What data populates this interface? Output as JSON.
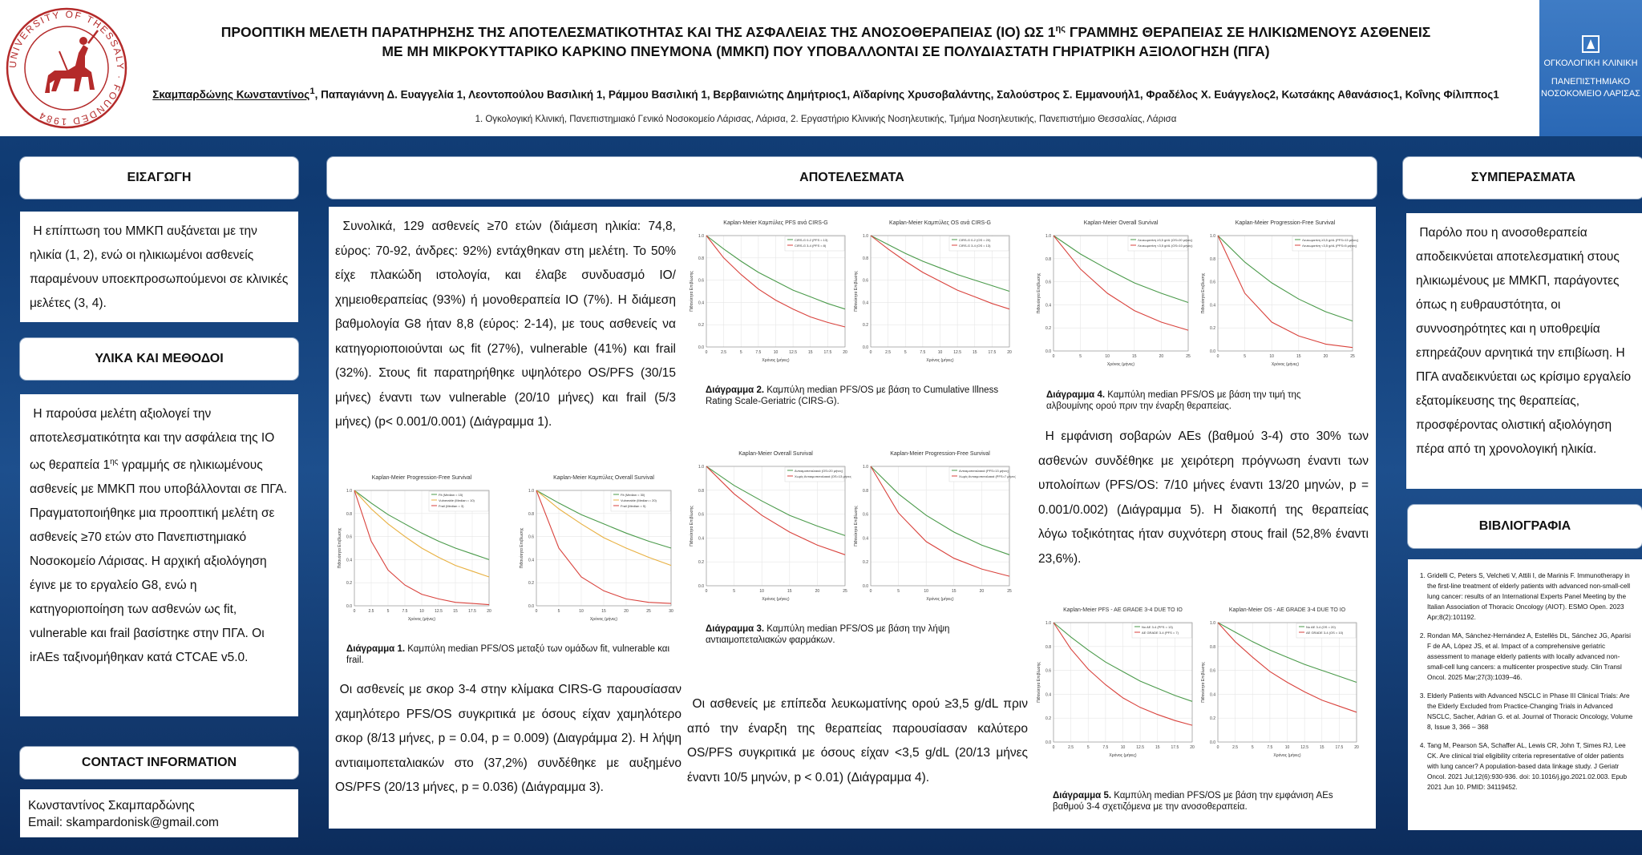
{
  "header": {
    "university_seal_text": "UNIVERSITY OF THESSALY · FOUNDED 1984",
    "title_line1_before": "ΠΡΟΟΠΤΙΚΗ ΜΕΛΕΤΗ ΠΑΡΑΤΗΡΗΣΗΣ ΤΗΣ ΑΠΟΤΕΛΕΣΜΑΤΙΚΟΤΗΤΑΣ ΚΑΙ ΤΗΣ ΑΣΦΑΛΕΙΑΣ ΤΗΣ ΑΝΟΣΟΘΕΡΑΠΕΙΑΣ (ΙΟ) ΩΣ 1",
    "title_line1_sup": "ης",
    "title_line1_after": " ΓΡΑΜΜΗΣ ΘΕΡΑΠΕΙΑΣ ΣΕ ΗΛΙΚΙΩΜΕΝΟΥΣ ΑΣΘΕΝΕΙΣ",
    "title_line2": "ΜΕ ΜΗ ΜΙΚΡΟΚΥΤΤΑΡΙΚΟ ΚΑΡΚΙΝΟ ΠΝΕΥΜΟΝΑ (ΜΜΚΠ) ΠΟΥ ΥΠΟΒΑΛΛΟΝΤΑΙ ΣΕ ΠΟΛΥΔΙΑΣΤΑΤΗ ΓΗΡΙΑΤΡΙΚΗ ΑΞΙΟΛΟΓΗΣΗ (ΠΓΑ)",
    "first_author": "Σκαμπαρδώνης Κωνσταντίνος",
    "other_authors": "Παπαγιάννη Δ.  Ευαγγελία 1, Λεοντοπούλου Βασιλική 1, Ράμμου Βασιλική 1, Βερβαινιώτης Δημήτριος1, Αϊδαρίνης Χρυσοβαλάντης, Σαλούστρος Σ. Εμμανουήλ1, Φραδέλος Χ. Ευάγγελος2, Κωτσάκης Αθανάσιος1, Κοΐνης Φίλιππος1",
    "first_author_sup": "1",
    "affiliations": "1. Ογκολογική Κλινική, Πανεπιστημιακό Γενικό Νοσοκομείο Λάρισας, Λάρισα, 2. Εργαστήριο Κλινικής Νοσηλευτικής, Τμήμα Νοσηλευτικής, Πανεπιστήμιο Θεσσαλίας, Λάρισα",
    "brand_line1": "ΟΓΚΟΛΟΓΙΚΗ ΚΛΙΝΙΚΗ",
    "brand_line2": "ΠΑΝΕΠΙΣΤΗΜΙΑΚΟ",
    "brand_line3": "ΝΟΣΟΚΟΜΕΙΟ ΛΑΡΙΣΑΣ"
  },
  "left": {
    "intro_heading": "ΕΙΣΑΓΩΓΗ",
    "intro_text": "Η επίπτωση του ΜΜΚΠ αυξάνεται με την ηλικία (1, 2), ενώ οι ηλικιωμένοι ασθενείς παραμένουν υποεκπροσωπούμενοι σε κλινικές μελέτες (3, 4).",
    "methods_heading": "ΥΛΙΚΑ ΚΑΙ ΜΕΘΟΔΟΙ",
    "methods_text_a": "Η παρούσα μελέτη αξιολογεί την αποτελεσματικότητα και την ασφάλεια της ΙΟ ως θεραπεία 1",
    "methods_sup": "ης",
    "methods_text_b": " γραμμής σε ηλικιωμένους ασθενείς με ΜΜΚΠ που υποβάλλονται σε  ΠΓΑ. Πραγματοποιήθηκε μια προοπτική μελέτη σε ασθενείς ≥70 ετών στο Πανεπιστημιακό Νοσοκομείο Λάρισας. Η αρχική αξιολόγηση έγινε με το εργαλείο G8, ενώ η κατηγοριοποίηση των ασθενών ως fit, vulnerable και frail βασίστηκε στην ΠΓΑ. Οι irAEs ταξινομήθηκαν κατά CTCAE v5.0.",
    "contact_heading": "CONTACT INFORMATION",
    "contact_name": "Κωνσταντίνος Σκαμπαρδώνης",
    "contact_email": "Email: skampardonisk@gmail.com"
  },
  "results": {
    "heading": "ΑΠΟΤΕΛΕΣΜΑΤΑ",
    "para1": "Συνολικά, 129 ασθενείς ≥70 ετών (διάμεση ηλικία: 74,8, εύρος: 70-92, άνδρες: 92%) εντάχθηκαν στη μελέτη. Το 50% είχε πλακώδη ιστολογία, και έλαβε συνδυασμό ΙΟ/χημειοθεραπείας (93%) ή μονοθεραπεία ΙΟ (7%). Η διάμεση βαθμολογία G8 ήταν 8,8 (εύρος: 2-14), με τους ασθενείς να κατηγοριοποιούνται ως fit (27%), vulnerable (41%) και frail (32%). Στους fit παρατηρήθηκε υψηλότερο OS/PFS (30/15 μήνες) έναντι των vulnerable (20/10 μήνες) και frail (5/3 μήνες) (p< 0.001/0.001) (Διάγραμμα 1).",
    "para2": "Οι ασθενείς με σκορ 3-4 στην κλίμακα CIRS-G παρουσίασαν χαμηλότερο PFS/OS συγκριτικά με όσους είχαν χαμηλότερο σκορ (8/13 μήνες, p = 0.04, p = 0.009) (Διαγράμμα 2). Η λήψη αντιαιμοπεταλιακών στο (37,2%) συνδέθηκε με αυξημένο OS/PFS (20/13 μήνες, p = 0.036) (Διάγραμμα 3).",
    "para3": "Οι ασθενείς με επίπεδα λευκωματίνης ορού ≥3,5 g/dL πριν από την έναρξη της θεραπείας παρουσίασαν καλύτερο OS/PFS συγκριτικά με όσους είχαν <3,5 g/dL (20/13 μήνες έναντι 10/5 μηνών, p < 0.01) (Διάγραμμα 4).",
    "para4": "Η εμφάνιση σοβαρών AEs (βαθμού 3-4) στο 30% των ασθενών συνδέθηκε με χειρότερη πρόγνωση έναντι των υπολοίπων (PFS/OS: 7/10 μήνες έναντι 13/20 μηνών, p = 0.001/0.002) (Διάγραμμα 5). Η διακοπή της θεραπείας λόγω τοξικότητας ήταν συχνότερη στους frail (52,8% έναντι 23,6%).",
    "cap1_bold": "Διάγραμμα 1.",
    "cap1": " Καμπύλη  median  PFS/OS μεταξύ των ομάδων fit, vulnerable και frail.",
    "cap2_bold": "Διάγραμμα 2.",
    "cap2": " Καμπύλη  median  PFS/OS  με βάση το Cumulative Illness Rating Scale-Geriatric (CIRS-G).",
    "cap3_bold": "Διάγραμμα 3.",
    "cap3": " Καμπύλη  median  PFS/OS  με βάση την λήψη αντιαιμοπεταλιακών φαρμάκων.",
    "cap4_bold": "Διάγραμμα 4.",
    "cap4": " Καμπύλη  median  PFS/OS  με βάση την τιμή της αλβουμίνης ορού πριν την έναρξη  θεραπείας.",
    "cap5_bold": "Διάγραμμα 5.",
    "cap5": " Καμπύλη  median  PFS/OS  με βάση την εμφάνιση AEs βαθμού 3-4 σχετιζόμενα με την ανοσοθεραπεία."
  },
  "right": {
    "conclusions_heading": "ΣΥΜΠΕΡΑΣΜΑΤΑ",
    "conclusions_text": "Παρόλο που η ανοσοθεραπεία αποδεικνύεται αποτελεσματική στους ηλικιωμένους με ΜΜΚΠ, παράγοντες όπως η ευθραυστότητα, οι συννοσηρότητες και η υποθρεψία επηρεάζουν αρνητικά την επιβίωση. Η ΠΓΑ αναδεικνύεται ως κρίσιμο εργαλείο εξατομίκευσης της θεραπείας, προσφέροντας ολιστική αξιολόγηση πέρα από τη χρονολογική ηλικία.",
    "references_heading": "ΒΙΒΛΙΟΓΡΑΦΙΑ",
    "references": [
      "Gridelli C, Peters S, Velcheti V, Attili I, de Marinis F. Immunotherapy in the first-line treatment of elderly patients with advanced non-small-cell lung cancer: results of an International Experts Panel Meeting by the Italian Association of Thoracic Oncology (AIOT). ESMO Open. 2023 Apr;8(2):101192.",
      "Rondan MA, Sánchez-Hernández A, Estellés DL, Sánchez JG, Aparisi F de AA, López JS, et al. Impact of a comprehensive geriatric assessment to manage elderly patients with locally advanced non-small-cell lung cancers: a multicenter prospective study. Clin Transl Oncol. 2025 Mar;27(3):1039–46.",
      "Elderly Patients with Advanced NSCLC in Phase III Clinical Trials: Are the Elderly Excluded from Practice-Changing Trials in Advanced NSCLC, Sacher, Adrian G. et al. Journal of Thoracic Oncology, Volume 8, Issue 3, 366 – 368",
      "Tang M, Pearson SA, Schaffer AL, Lewis CR, John T, Simes RJ, Lee CK. Are clinical trial eligibility criteria representative of older patients with lung cancer? A population-based data linkage study. J Geriatr Oncol. 2021 Jul;12(6):930-936. doi: 10.1016/j.jgo.2021.02.003. Epub 2021 Jun 10. PMID: 34119452."
    ]
  },
  "colors": {
    "green": "#4a9a4a",
    "red": "#d9423c",
    "orange": "#e8b040",
    "seal_red": "#b42a2a",
    "navy": "#133f77"
  },
  "chart_data": [
    {
      "type": "line",
      "title": "Kaplan-Meier Progression-Free Survival",
      "x": [
        0,
        2.5,
        5,
        7.5,
        10,
        12.5,
        15,
        17.5,
        20
      ],
      "xlabel": "Χρόνος (μήνες)",
      "ylabel": "Πιθανότητα Επιβίωσης",
      "xlim": [
        0,
        20
      ],
      "ylim": [
        0,
        1
      ],
      "series": [
        {
          "name": "Fit (Median = 15)",
          "color": "#4a9a4a",
          "values": [
            1.0,
            0.89,
            0.79,
            0.71,
            0.63,
            0.56,
            0.5,
            0.45,
            0.4
          ]
        },
        {
          "name": "Vulnerable (Median = 10)",
          "color": "#e8b040",
          "values": [
            1.0,
            0.84,
            0.71,
            0.6,
            0.5,
            0.42,
            0.35,
            0.3,
            0.25
          ]
        },
        {
          "name": "Frail (Median = 3)",
          "color": "#d9423c",
          "values": [
            1.0,
            0.56,
            0.31,
            0.18,
            0.1,
            0.06,
            0.03,
            0.02,
            0.01
          ]
        }
      ]
    },
    {
      "type": "line",
      "title": "Kaplan-Meier Καμπύλες Overall Survival",
      "x": [
        0,
        5,
        10,
        15,
        20,
        25,
        30
      ],
      "xlabel": "Χρόνος (μήνες)",
      "ylabel": "Πιθανότητα Επιβίωσης",
      "xlim": [
        0,
        30
      ],
      "ylim": [
        0,
        1
      ],
      "series": [
        {
          "name": "Fit (Median = 30)",
          "color": "#4a9a4a",
          "values": [
            1.0,
            0.89,
            0.79,
            0.71,
            0.63,
            0.56,
            0.5
          ]
        },
        {
          "name": "Vulnerable (Median = 20)",
          "color": "#e8b040",
          "values": [
            1.0,
            0.84,
            0.71,
            0.59,
            0.5,
            0.42,
            0.35
          ]
        },
        {
          "name": "Frail (Median = 5)",
          "color": "#d9423c",
          "values": [
            1.0,
            0.5,
            0.25,
            0.13,
            0.06,
            0.03,
            0.02
          ]
        }
      ]
    },
    {
      "type": "line",
      "title": "Kaplan-Meier Καμπύλες PFS ανά CIRS-G",
      "x": [
        0,
        2.5,
        5,
        7.5,
        10,
        12.5,
        15,
        17.5,
        20
      ],
      "xlabel": "Χρόνος (μήνες)",
      "ylabel": "Πιθανότητα Επιβίωσης",
      "xlim": [
        0,
        20
      ],
      "ylim": [
        0,
        1
      ],
      "series": [
        {
          "name": "CIRS-G 0-2 (PFS = 13)",
          "color": "#4a9a4a",
          "values": [
            1.0,
            0.88,
            0.77,
            0.67,
            0.59,
            0.51,
            0.45,
            0.39,
            0.34
          ]
        },
        {
          "name": "CIRS-G 3-4 (PFS = 8)",
          "color": "#d9423c",
          "values": [
            1.0,
            0.8,
            0.65,
            0.52,
            0.42,
            0.34,
            0.27,
            0.22,
            0.18
          ]
        }
      ]
    },
    {
      "type": "line",
      "title": "Kaplan-Meier Καμπύλες OS ανά CIRS-G",
      "x": [
        0,
        2.5,
        5,
        7.5,
        10,
        12.5,
        15,
        17.5,
        20
      ],
      "xlabel": "Χρόνος (μήνες)",
      "ylabel": "Πιθανότητα Επιβίωσης",
      "xlim": [
        0,
        20
      ],
      "ylim": [
        0,
        1
      ],
      "series": [
        {
          "name": "CIRS-G 0-2 (OS = 20)",
          "color": "#4a9a4a",
          "values": [
            1.0,
            0.92,
            0.84,
            0.77,
            0.71,
            0.65,
            0.6,
            0.55,
            0.5
          ]
        },
        {
          "name": "CIRS-G 3-4 (OS = 13)",
          "color": "#d9423c",
          "values": [
            1.0,
            0.88,
            0.77,
            0.67,
            0.59,
            0.51,
            0.45,
            0.39,
            0.34
          ]
        }
      ]
    },
    {
      "type": "line",
      "title": "Kaplan-Meier Overall Survival",
      "x": [
        0,
        5,
        10,
        15,
        20,
        25
      ],
      "xlabel": "Χρόνος (μήνες)",
      "ylabel": "Πιθανότητα Επιβίωσης",
      "xlim": [
        0,
        25
      ],
      "ylim": [
        0,
        1
      ],
      "series": [
        {
          "name": "Αντιαιμοπεταλιακά (OS=20 μήνες)",
          "color": "#4a9a4a",
          "values": [
            1.0,
            0.84,
            0.71,
            0.59,
            0.5,
            0.42
          ]
        },
        {
          "name": "Χωρίς Αντιαιμοπεταλιακά (OS=13 μήνες)",
          "color": "#d9423c",
          "values": [
            1.0,
            0.77,
            0.59,
            0.45,
            0.34,
            0.26
          ]
        }
      ]
    },
    {
      "type": "line",
      "title": "Kaplan-Meier Progression-Free Survival",
      "x": [
        0,
        5,
        10,
        15,
        20,
        25
      ],
      "xlabel": "Χρόνος (μήνες)",
      "ylabel": "Πιθανότητα Επιβίωσης",
      "xlim": [
        0,
        25
      ],
      "ylim": [
        0,
        1
      ],
      "series": [
        {
          "name": "Αντιαιμοπεταλιακά (PFS=13 μήνες)",
          "color": "#4a9a4a",
          "values": [
            1.0,
            0.77,
            0.59,
            0.45,
            0.34,
            0.26
          ]
        },
        {
          "name": "Χωρίς Αντιαιμοπεταλιακά (PFS=7 μήνες)",
          "color": "#d9423c",
          "values": [
            1.0,
            0.61,
            0.37,
            0.23,
            0.14,
            0.08
          ]
        }
      ]
    },
    {
      "type": "line",
      "title": "Kaplan-Meier Overall Survival",
      "x": [
        0,
        5,
        10,
        15,
        20,
        25
      ],
      "xlabel": "Χρόνος (μήνες)",
      "ylabel": "Πιθανότητα Επιβίωσης",
      "xlim": [
        0,
        25
      ],
      "ylim": [
        0,
        1
      ],
      "series": [
        {
          "name": "Λευκωματίνη ≥3,5 g/dL (OS=20 μήνες)",
          "color": "#4a9a4a",
          "values": [
            1.0,
            0.84,
            0.71,
            0.59,
            0.5,
            0.42
          ]
        },
        {
          "name": "Λευκωματίνη <3,5 g/dL (OS=10 μήνες)",
          "color": "#d9423c",
          "values": [
            1.0,
            0.71,
            0.5,
            0.35,
            0.25,
            0.18
          ]
        }
      ]
    },
    {
      "type": "line",
      "title": "Kaplan-Meier Progression-Free Survival",
      "x": [
        0,
        5,
        10,
        15,
        20,
        25
      ],
      "xlabel": "Χρόνος (μήνες)",
      "ylabel": "Πιθανότητα Επιβίωσης",
      "xlim": [
        0,
        25
      ],
      "ylim": [
        0,
        1
      ],
      "series": [
        {
          "name": "Λευκωματίνη ≥3,5 g/dL (PFS=13 μήνες)",
          "color": "#4a9a4a",
          "values": [
            1.0,
            0.77,
            0.59,
            0.45,
            0.34,
            0.26
          ]
        },
        {
          "name": "Λευκωματίνη <3,5 g/dL (PFS=5 μήνες)",
          "color": "#d9423c",
          "values": [
            1.0,
            0.5,
            0.25,
            0.13,
            0.06,
            0.03
          ]
        }
      ]
    },
    {
      "type": "line",
      "title": "Kaplan-Meier PFS - AE GRADE 3-4 DUE TO IO",
      "x": [
        0,
        2.5,
        5,
        7.5,
        10,
        12.5,
        15,
        17.5,
        20
      ],
      "xlabel": "Χρόνος (μήνες)",
      "ylabel": "Πιθανότητα Επιβίωσης",
      "xlim": [
        0,
        20
      ],
      "ylim": [
        0,
        1
      ],
      "series": [
        {
          "name": "No AE 3-4 (PFS = 13)",
          "color": "#4a9a4a",
          "values": [
            1.0,
            0.88,
            0.77,
            0.67,
            0.59,
            0.51,
            0.45,
            0.39,
            0.34
          ]
        },
        {
          "name": "AE GRADE 3-4 (PFS = 7)",
          "color": "#d9423c",
          "values": [
            1.0,
            0.78,
            0.61,
            0.48,
            0.37,
            0.29,
            0.23,
            0.18,
            0.14
          ]
        }
      ]
    },
    {
      "type": "line",
      "title": "Kaplan-Meier OS - AE GRADE 3-4 DUE TO IO",
      "x": [
        0,
        2.5,
        5,
        7.5,
        10,
        12.5,
        15,
        17.5,
        20
      ],
      "xlabel": "Χρόνος (μήνες)",
      "ylabel": "Πιθανότητα Επιβίωσης",
      "xlim": [
        0,
        20
      ],
      "ylim": [
        0,
        1
      ],
      "series": [
        {
          "name": "No AE 3-4 (OS = 20)",
          "color": "#4a9a4a",
          "values": [
            1.0,
            0.92,
            0.84,
            0.77,
            0.71,
            0.65,
            0.6,
            0.55,
            0.5
          ]
        },
        {
          "name": "AE GRADE 3-4 (OS = 10)",
          "color": "#d9423c",
          "values": [
            1.0,
            0.84,
            0.71,
            0.59,
            0.5,
            0.42,
            0.35,
            0.3,
            0.25
          ]
        }
      ]
    }
  ]
}
